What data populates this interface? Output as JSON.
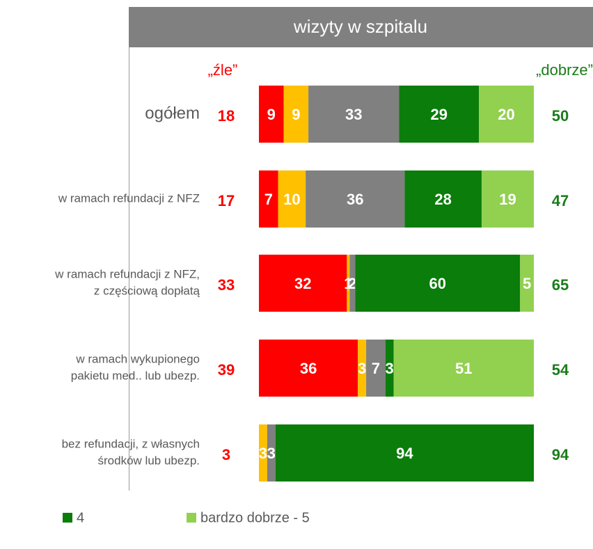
{
  "chart_data": {
    "type": "stacked-bar-horizontal",
    "title": "wizyty w szpitalu",
    "bad_label": "„źle”",
    "good_label": "„dobrze”",
    "categories": [
      [
        "ogółem"
      ],
      [
        "w ramach refundacji z NFZ"
      ],
      [
        "w ramach refundacji z NFZ,",
        "z częściową dopłatą"
      ],
      [
        "w ramach wykupionego",
        "pakietu med.. lub ubezp."
      ],
      [
        "bez refundacji, z własnych",
        "środków lub ubezp."
      ]
    ],
    "series": [
      {
        "color": "#ff0000",
        "values": [
          9,
          7,
          32,
          36,
          null
        ]
      },
      {
        "color": "#ffc000",
        "values": [
          9,
          10,
          1,
          3,
          3
        ]
      },
      {
        "color": "#808080",
        "values": [
          33,
          36,
          2,
          7,
          3
        ]
      },
      {
        "name": "4",
        "color": "#0a7d0a",
        "values": [
          29,
          28,
          60,
          3,
          94
        ]
      },
      {
        "name": "bardzo dobrze - 5",
        "color": "#92d050",
        "values": [
          20,
          19,
          5,
          51,
          null
        ]
      }
    ],
    "bad_totals": [
      18,
      17,
      33,
      39,
      3
    ],
    "good_totals": [
      50,
      47,
      65,
      54,
      94
    ],
    "bad_color": "#ff0000",
    "good_color": "#1a7d1a",
    "xlim": [
      0,
      100
    ]
  }
}
